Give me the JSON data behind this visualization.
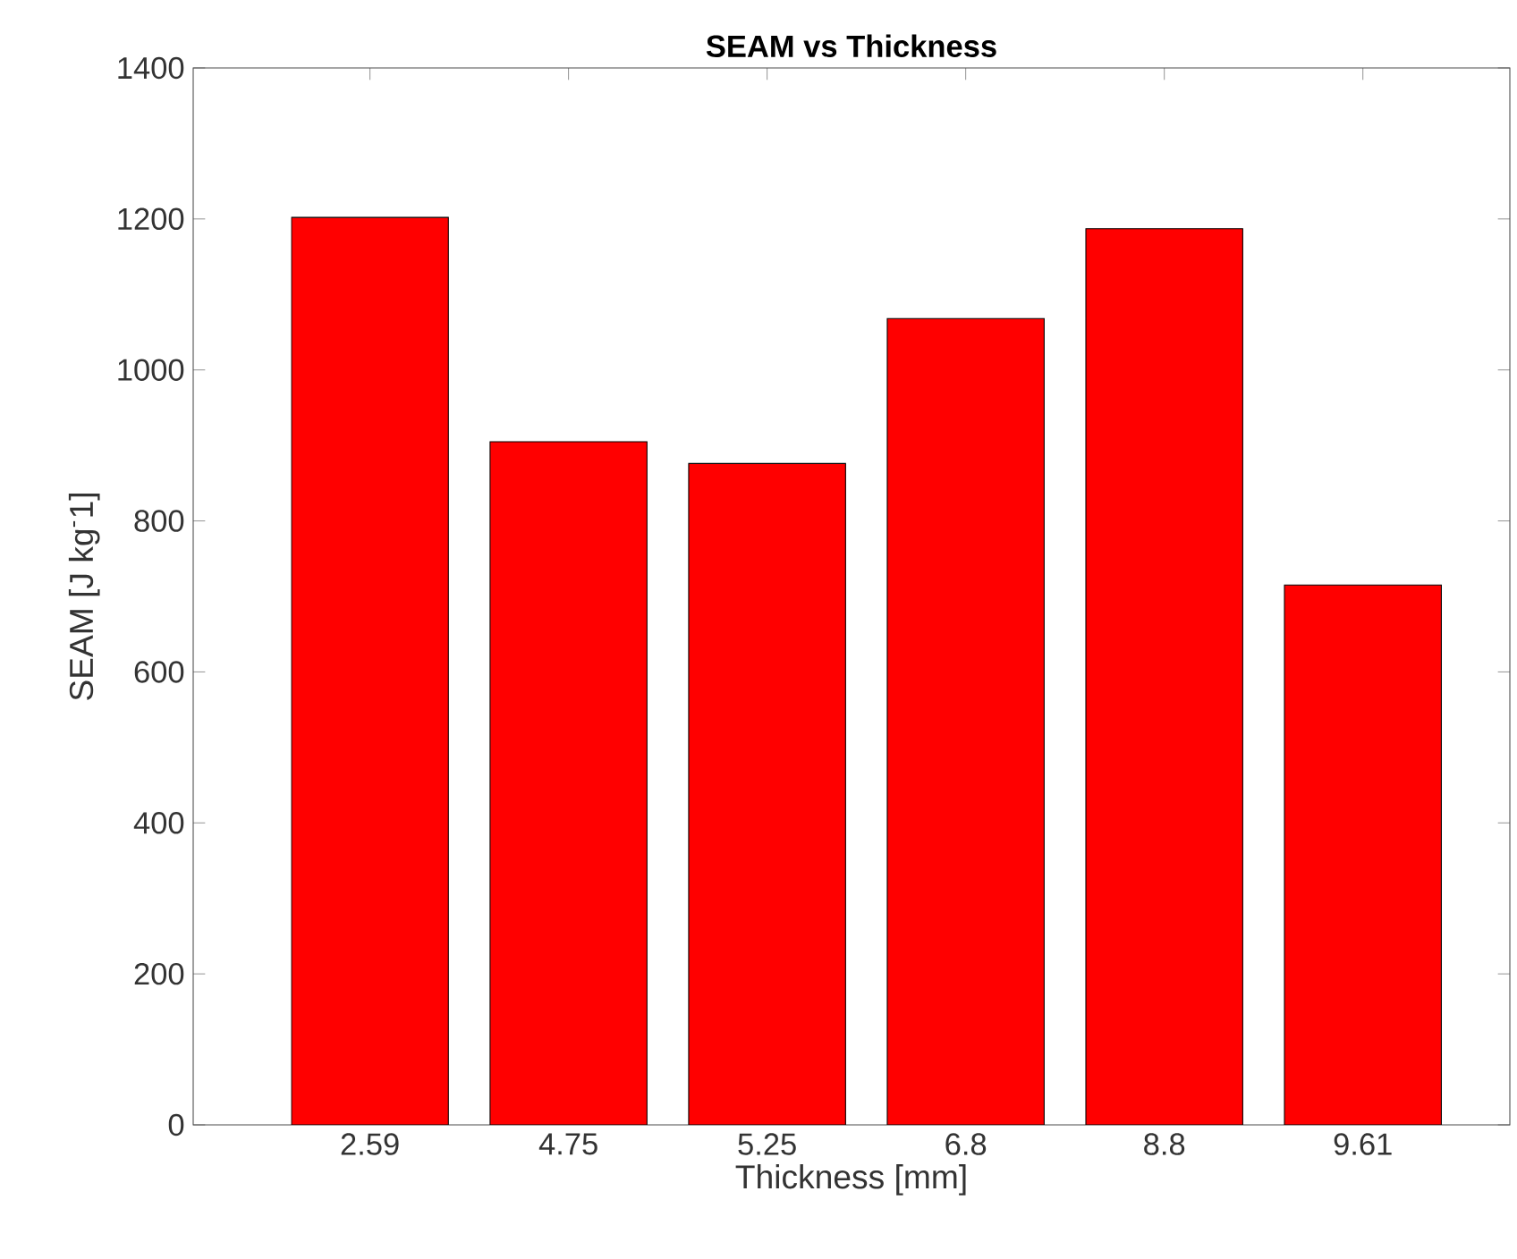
{
  "chart_data": {
    "type": "bar",
    "title": "SEAM vs Thickness",
    "xlabel": "Thickness [mm]",
    "ylabel": "SEAM [J kg$^{-}$1]",
    "categories": [
      "2.59",
      "4.75",
      "5.25",
      "6.8",
      "8.8",
      "9.61"
    ],
    "values": [
      1202,
      905,
      876,
      1068,
      1187,
      715
    ],
    "color": "#ff0000",
    "ylim": [
      0,
      1400
    ],
    "yticks": [
      0,
      200,
      400,
      600,
      800,
      1000,
      1200,
      1400
    ],
    "grid": false
  }
}
